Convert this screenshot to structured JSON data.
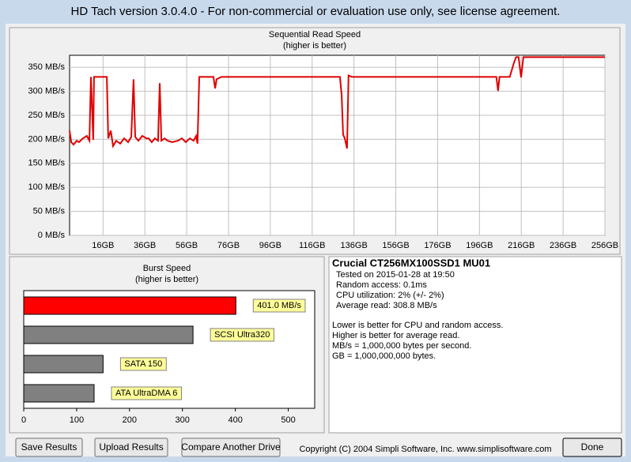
{
  "window_title": "HD Tach version 3.0.4.0  - For non-commercial or evaluation use only, see license agreement.",
  "chart_data": [
    {
      "type": "line",
      "title": "Sequential Read Speed",
      "subtitle": "(higher is better)",
      "color": "#e00000",
      "x": [
        0,
        0.8,
        1.9,
        3.4,
        4.5,
        6.4,
        8.3,
        9.5,
        10.2,
        11.3,
        11.7,
        14,
        15.9,
        17.8,
        18.5,
        19.7,
        20.8,
        22.3,
        24.2,
        26.1,
        28,
        29.5,
        30.6,
        31.4,
        32.9,
        34.8,
        36.7,
        37.8,
        39.3,
        40.8,
        42.3,
        43.1,
        43.9,
        45.4,
        46.9,
        49.1,
        51.8,
        53.7,
        55.6,
        57.5,
        59.3,
        60.5,
        61.2,
        62,
        64.3,
        66.9,
        68.8,
        69.6,
        70.3,
        72.6,
        76.4,
        87.7,
        102.8,
        117.9,
        129.3,
        130.1,
        130.8,
        131.6,
        132.7,
        133.4,
        135,
        155.7,
        178.4,
        201.1,
        204.1,
        204.9,
        205.6,
        210.5,
        212.4,
        213.5,
        214.7,
        215.9,
        217,
        231.4,
        256
      ],
      "values": [
        218,
        194,
        189,
        197,
        194,
        202,
        207,
        197,
        330,
        199,
        330,
        330,
        330,
        330,
        202,
        218,
        186,
        197,
        191,
        202,
        194,
        205,
        325,
        205,
        197,
        207,
        202,
        202,
        194,
        202,
        197,
        317,
        197,
        202,
        197,
        194,
        197,
        202,
        194,
        202,
        197,
        207,
        191,
        330,
        330,
        330,
        330,
        306,
        325,
        330,
        330,
        330,
        330,
        330,
        330,
        292,
        210,
        202,
        181,
        333,
        330,
        330,
        330,
        330,
        330,
        301,
        330,
        330,
        358,
        371,
        371,
        329,
        371,
        371,
        371
      ],
      "xlim": [
        0,
        256
      ],
      "xticks": [
        {
          "value": 16,
          "label": "16GB"
        },
        {
          "value": 36,
          "label": "36GB"
        },
        {
          "value": 56,
          "label": "56GB"
        },
        {
          "value": 76,
          "label": "76GB"
        },
        {
          "value": 96,
          "label": "96GB"
        },
        {
          "value": 116,
          "label": "116GB"
        },
        {
          "value": 136,
          "label": "136GB"
        },
        {
          "value": 156,
          "label": "156GB"
        },
        {
          "value": 176,
          "label": "176GB"
        },
        {
          "value": 196,
          "label": "196GB"
        },
        {
          "value": 216,
          "label": "216GB"
        },
        {
          "value": 236,
          "label": "236GB"
        },
        {
          "value": 256,
          "label": "256GB"
        }
      ],
      "ylim": [
        0,
        375
      ],
      "yticks": [
        {
          "value": 0,
          "label": "0 MB/s"
        },
        {
          "value": 50,
          "label": "50 MB/s"
        },
        {
          "value": 100,
          "label": "100 MB/s"
        },
        {
          "value": 150,
          "label": "150 MB/s"
        },
        {
          "value": 200,
          "label": "200 MB/s"
        },
        {
          "value": 250,
          "label": "250 MB/s"
        },
        {
          "value": 300,
          "label": "300 MB/s"
        },
        {
          "value": 350,
          "label": "350 MB/s"
        }
      ]
    },
    {
      "type": "hbar",
      "title": "Burst Speed",
      "subtitle": "(higher is better)",
      "categories": [
        null,
        "SCSI Ultra320",
        "SATA 150",
        "ATA UltraDMA 6"
      ],
      "values": [
        401.0,
        320,
        150,
        133
      ],
      "value_labels": [
        "401.0 MB/s",
        null,
        null,
        null
      ],
      "colors": [
        "#ff0000",
        "#808080",
        "#808080",
        "#808080"
      ],
      "xlim": [
        0,
        550
      ],
      "xticks": [
        0,
        100,
        200,
        300,
        400,
        500
      ]
    }
  ],
  "info": {
    "title": "Crucial CT256MX100SSD1 MU01",
    "lines": [
      "Tested on 2015-01-28 at 19:50",
      "Random access: 0.1ms",
      "CPU utilization: 2% (+/- 2%)",
      "Average read: 308.8 MB/s"
    ],
    "notes": [
      "Lower is better for CPU and random access.",
      "Higher is better for average read.",
      "MB/s = 1,000,000 bytes per second.",
      "GB = 1,000,000,000 bytes."
    ]
  },
  "buttons": [
    "Save Results",
    "Upload Results",
    "Compare Another Drive",
    "Done"
  ],
  "copyright": "Copyright (C) 2004 Simpli Software, Inc. www.simplisoftware.com"
}
